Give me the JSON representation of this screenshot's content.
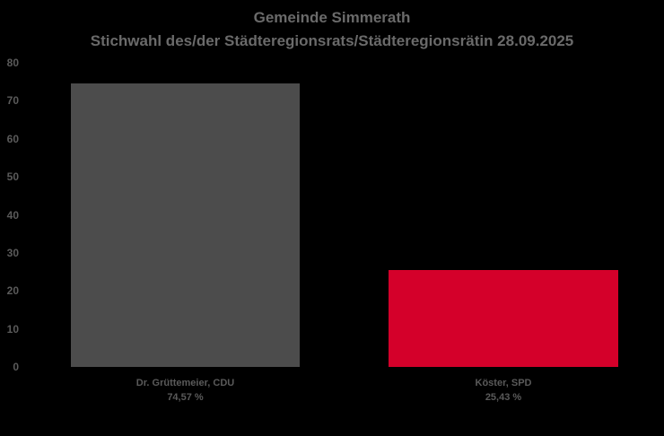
{
  "chart_data": {
    "type": "bar",
    "title": "Gemeinde Simmerath",
    "subtitle": "Stichwahl des/der Städteregionsrats/Städteregionsrätin 28.09.2025",
    "categories": [
      "Dr. Grüttemeier, CDU",
      "Köster, SPD"
    ],
    "values": [
      74.57,
      25.43
    ],
    "value_labels": [
      "74,57 %",
      "25,43 %"
    ],
    "bar_colors": [
      "#4C4C4C",
      "#D4002A"
    ],
    "ylim": [
      0,
      80
    ],
    "yticks": [
      0,
      10,
      20,
      30,
      40,
      50,
      60,
      70,
      80
    ],
    "xlabel": "",
    "ylabel": "",
    "grid": false,
    "legend": false,
    "background_color": "#000000",
    "title_color": "#6A6A6A",
    "text_color": "#5A5A5A"
  }
}
